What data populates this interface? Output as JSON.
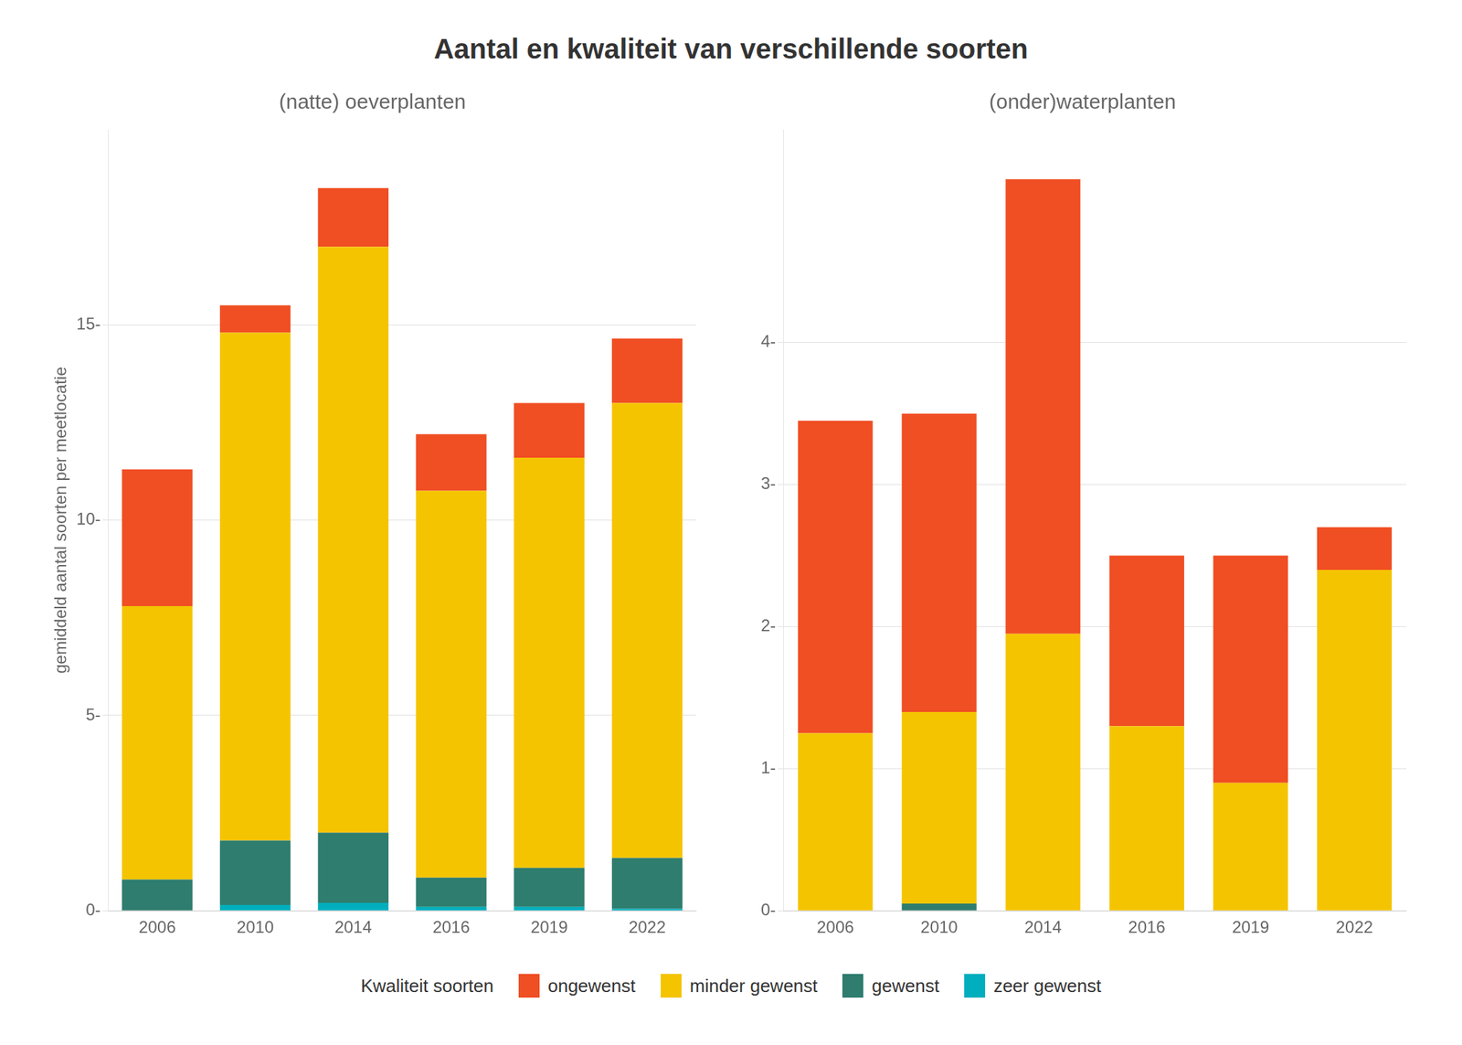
{
  "title": "Aantal en kwaliteit van verschillende soorten",
  "legend_title": "Kwaliteit soorten",
  "legend": "bottom",
  "chart_data": [
    {
      "type": "bar",
      "stacked": true,
      "grid": true,
      "title": "(natte) oeverplanten",
      "ylabel": "gemiddeld aantal soorten per meetlocatie",
      "categories": [
        "2006",
        "2010",
        "2014",
        "2016",
        "2019",
        "2022"
      ],
      "series": [
        {
          "name": "zeer gewenst",
          "color": "#00AEBD",
          "values": [
            0.0,
            0.15,
            0.2,
            0.1,
            0.1,
            0.05
          ]
        },
        {
          "name": "gewenst",
          "color": "#2E7D6E",
          "values": [
            0.8,
            1.65,
            1.8,
            0.75,
            1.0,
            1.3
          ]
        },
        {
          "name": "minder gewenst",
          "color": "#F5C400",
          "values": [
            7.0,
            13.0,
            15.0,
            9.9,
            10.5,
            11.65
          ]
        },
        {
          "name": "ongewenst",
          "color": "#F04E23",
          "values": [
            3.5,
            0.7,
            1.5,
            1.45,
            1.4,
            1.65
          ]
        }
      ],
      "ylim": [
        0,
        20
      ],
      "yticks": [
        {
          "value": 0,
          "label": "0-"
        },
        {
          "value": 5,
          "label": "5-"
        },
        {
          "value": 10,
          "label": "10-"
        },
        {
          "value": 15,
          "label": "15-"
        }
      ]
    },
    {
      "type": "bar",
      "stacked": true,
      "grid": true,
      "title": "(onder)waterplanten",
      "categories": [
        "2006",
        "2010",
        "2014",
        "2016",
        "2019",
        "2022"
      ],
      "series": [
        {
          "name": "zeer gewenst",
          "color": "#00AEBD",
          "values": [
            0.0,
            0.0,
            0.0,
            0.0,
            0.0,
            0.0
          ]
        },
        {
          "name": "gewenst",
          "color": "#2E7D6E",
          "values": [
            0.0,
            0.05,
            0.0,
            0.0,
            0.0,
            0.0
          ]
        },
        {
          "name": "minder gewenst",
          "color": "#F5C400",
          "values": [
            1.25,
            1.35,
            1.95,
            1.3,
            0.9,
            2.4
          ]
        },
        {
          "name": "ongewenst",
          "color": "#F04E23",
          "values": [
            2.2,
            2.1,
            3.2,
            1.2,
            1.6,
            0.3
          ]
        }
      ],
      "ylim": [
        0,
        5.5
      ],
      "yticks": [
        {
          "value": 0,
          "label": "0-"
        },
        {
          "value": 1,
          "label": "1-"
        },
        {
          "value": 2,
          "label": "2-"
        },
        {
          "value": 3,
          "label": "3-"
        },
        {
          "value": 4,
          "label": "4-"
        }
      ]
    }
  ]
}
